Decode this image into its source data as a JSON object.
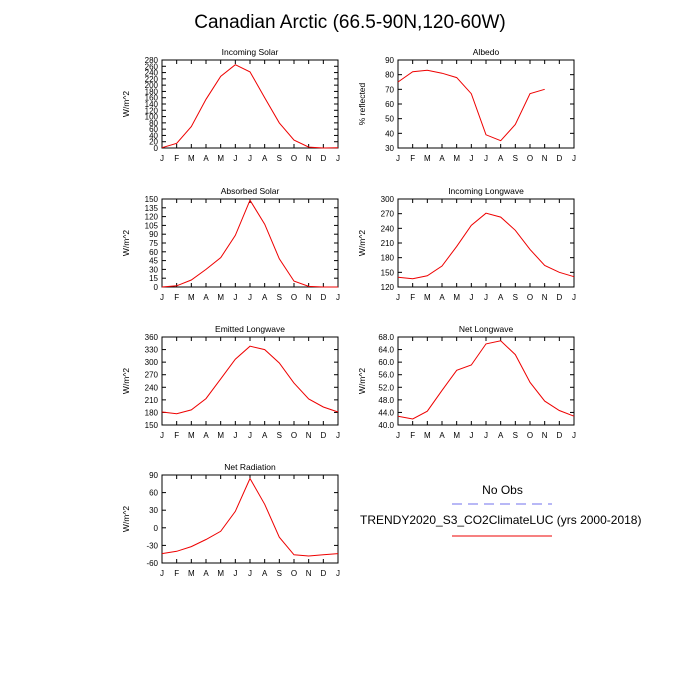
{
  "title": "Canadian Arctic (66.5-90N,120-60W)",
  "months": [
    "J",
    "F",
    "M",
    "A",
    "M",
    "J",
    "J",
    "A",
    "S",
    "O",
    "N",
    "D",
    "J"
  ],
  "colors": {
    "model": "#ee0000",
    "obs": "#7070ee",
    "axis": "#000000"
  },
  "legend": {
    "obs_label": "No Obs",
    "model_label": "TRENDY2020_S3_CO2ClimateLUC (yrs 2000-2018)"
  },
  "chart_data": [
    {
      "type": "line",
      "title": "Incoming Solar",
      "ylabel": "W/m^2",
      "ylim": [
        0,
        280
      ],
      "yticks": [
        "0",
        "20",
        "40",
        "60",
        "80",
        "100",
        "120",
        "140",
        "160",
        "180",
        "200",
        "220",
        "240",
        "260",
        "280"
      ],
      "series": [
        {
          "values": [
            1,
            15,
            68,
            155,
            228,
            265,
            242,
            160,
            80,
            25,
            3,
            0,
            1
          ]
        }
      ]
    },
    {
      "type": "line",
      "title": "Albedo",
      "ylabel": "% reflected",
      "ylim": [
        30,
        90
      ],
      "yticks": [
        "30",
        "40",
        "50",
        "60",
        "70",
        "80",
        "90"
      ],
      "series": [
        {
          "values": [
            75,
            82,
            83,
            81,
            78,
            67,
            39,
            35,
            46,
            67,
            70
          ]
        }
      ]
    },
    {
      "type": "line",
      "title": "Absorbed Solar",
      "ylabel": "W/m^2",
      "ylim": [
        0,
        150
      ],
      "yticks": [
        "0",
        "15",
        "30",
        "45",
        "60",
        "75",
        "90",
        "105",
        "120",
        "135",
        "150"
      ],
      "series": [
        {
          "values": [
            0,
            2,
            12,
            30,
            50,
            88,
            148,
            107,
            48,
            10,
            1,
            0,
            0
          ]
        }
      ]
    },
    {
      "type": "line",
      "title": "Incoming Longwave",
      "ylabel": "W/m^2",
      "ylim": [
        120,
        300
      ],
      "yticks": [
        "120",
        "150",
        "180",
        "210",
        "240",
        "270",
        "300"
      ],
      "series": [
        {
          "values": [
            140,
            137,
            143,
            163,
            203,
            246,
            271,
            263,
            236,
            197,
            164,
            150,
            141
          ]
        }
      ]
    },
    {
      "type": "line",
      "title": "Emitted Longwave",
      "ylabel": "W/m^2",
      "ylim": [
        150,
        360
      ],
      "yticks": [
        "150",
        "180",
        "210",
        "240",
        "270",
        "300",
        "330",
        "360"
      ],
      "series": [
        {
          "values": [
            181,
            177,
            186,
            213,
            260,
            307,
            338,
            330,
            298,
            250,
            212,
            193,
            181
          ]
        }
      ]
    },
    {
      "type": "line",
      "title": "Net Longwave",
      "ylabel": "W/m^2",
      "ylim": [
        40,
        68
      ],
      "yticks": [
        "40.0",
        "44.0",
        "48.0",
        "52.0",
        "56.0",
        "60.0",
        "64.0",
        "68.0"
      ],
      "series": [
        {
          "values": [
            42.8,
            41.9,
            44.4,
            51.0,
            57.4,
            59.1,
            65.8,
            66.8,
            62.4,
            53.6,
            47.6,
            44.6,
            42.8
          ]
        }
      ]
    },
    {
      "type": "line",
      "title": "Net Radiation",
      "ylabel": "W/m^2",
      "ylim": [
        -60,
        90
      ],
      "yticks": [
        "-60",
        "-30",
        "0",
        "30",
        "60",
        "90"
      ],
      "series": [
        {
          "values": [
            -44,
            -40,
            -32,
            -20,
            -6,
            28,
            84,
            40,
            -16,
            -46,
            -48,
            -46,
            -44
          ]
        }
      ]
    }
  ]
}
